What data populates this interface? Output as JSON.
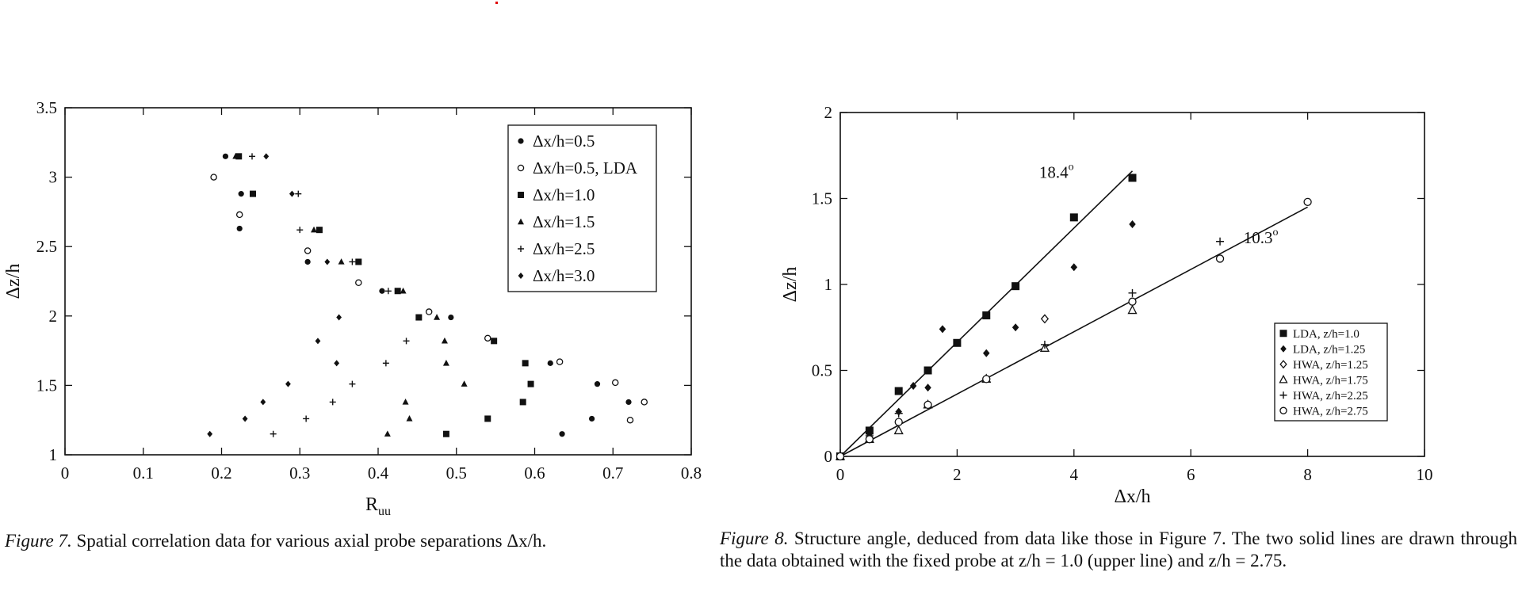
{
  "colors": {
    "ink": "#111111",
    "background": "#ffffff",
    "stray_mark": "#e00000"
  },
  "chart_data": [
    {
      "id": "fig7",
      "type": "scatter",
      "title": "",
      "xlabel": "R",
      "xlabel_sub": "uu",
      "ylabel": "Δz/h",
      "xlim": [
        0,
        0.8
      ],
      "ylim": [
        1,
        3.5
      ],
      "xticks": [
        0,
        0.1,
        0.2,
        0.3,
        0.4,
        0.5,
        0.6,
        0.7,
        0.8
      ],
      "yticks": [
        1,
        1.5,
        2,
        2.5,
        3,
        3.5
      ],
      "xtick_labels": [
        "0",
        "0.1",
        "0.2",
        "0.3",
        "0.4",
        "0.5",
        "0.6",
        "0.7",
        "0.8"
      ],
      "ytick_labels": [
        "1",
        "1.5",
        "2",
        "2.5",
        "3",
        "3.5"
      ],
      "grid": false,
      "legend_position": "top-right",
      "series": [
        {
          "name": "Δx/h=0.5",
          "marker": "filled-circle",
          "x": [
            0.205,
            0.225,
            0.223,
            0.31,
            0.405,
            0.493,
            0.62,
            0.635,
            0.68,
            0.673,
            0.72
          ],
          "y": [
            3.15,
            2.88,
            2.63,
            2.39,
            2.18,
            1.99,
            1.66,
            1.15,
            1.51,
            1.26,
            1.38
          ]
        },
        {
          "name": "Δx/h=0.5, LDA",
          "marker": "open-circle",
          "x": [
            0.19,
            0.223,
            0.31,
            0.375,
            0.465,
            0.54,
            0.632,
            0.703,
            0.722,
            0.74
          ],
          "y": [
            3.0,
            2.73,
            2.47,
            2.24,
            2.03,
            1.84,
            1.67,
            1.52,
            1.25,
            1.38
          ]
        },
        {
          "name": "Δx/h=1.0",
          "marker": "filled-square",
          "x": [
            0.222,
            0.24,
            0.325,
            0.375,
            0.425,
            0.452,
            0.487,
            0.54,
            0.548,
            0.585,
            0.588,
            0.595
          ],
          "y": [
            3.15,
            2.88,
            2.62,
            2.39,
            2.18,
            1.99,
            1.15,
            1.26,
            1.82,
            1.38,
            1.66,
            1.51
          ]
        },
        {
          "name": "Δx/h=1.5",
          "marker": "filled-triangle",
          "x": [
            0.218,
            0.318,
            0.353,
            0.432,
            0.435,
            0.44,
            0.475,
            0.485,
            0.487,
            0.51,
            0.412
          ],
          "y": [
            3.15,
            2.62,
            2.39,
            2.18,
            1.38,
            1.26,
            1.99,
            1.82,
            1.66,
            1.51,
            1.15
          ]
        },
        {
          "name": "Δx/h=2.5",
          "marker": "plus",
          "x": [
            0.239,
            0.298,
            0.3,
            0.367,
            0.413,
            0.436,
            0.41,
            0.367,
            0.342,
            0.308,
            0.266
          ],
          "y": [
            3.15,
            2.88,
            2.62,
            2.39,
            2.18,
            1.82,
            1.66,
            1.51,
            1.38,
            1.26,
            1.15
          ]
        },
        {
          "name": "Δx/h=3.0",
          "marker": "filled-diamond",
          "x": [
            0.257,
            0.29,
            0.335,
            0.35,
            0.323,
            0.347,
            0.285,
            0.253,
            0.23,
            0.185
          ],
          "y": [
            3.15,
            2.88,
            2.39,
            1.99,
            1.82,
            1.66,
            1.51,
            1.38,
            1.26,
            1.15
          ]
        }
      ]
    },
    {
      "id": "fig8",
      "type": "scatter",
      "title": "",
      "xlabel": "Δx/h",
      "ylabel": "Δz/h",
      "xlim": [
        0,
        10
      ],
      "ylim": [
        0,
        2
      ],
      "xticks": [
        0,
        2,
        4,
        6,
        8,
        10
      ],
      "yticks": [
        0,
        0.5,
        1,
        1.5,
        2
      ],
      "xtick_labels": [
        "0",
        "2",
        "4",
        "6",
        "8",
        "10"
      ],
      "ytick_labels": [
        "0",
        "0.5",
        "1",
        "1.5",
        "2"
      ],
      "grid": false,
      "legend_position": "center-right",
      "series": [
        {
          "name": "LDA,  z/h=1.0",
          "marker": "filled-square",
          "x": [
            0,
            0.5,
            1,
            1.5,
            2,
            2.5,
            3,
            4,
            5
          ],
          "y": [
            0,
            0.15,
            0.38,
            0.5,
            0.66,
            0.82,
            0.99,
            1.39,
            1.62
          ]
        },
        {
          "name": "LDA,  z/h=1.25",
          "marker": "filled-diamond",
          "x": [
            0.5,
            1,
            1.25,
            1.5,
            1.75,
            2.5,
            3,
            4,
            5
          ],
          "y": [
            0.13,
            0.26,
            0.41,
            0.4,
            0.74,
            0.6,
            0.75,
            1.1,
            1.35
          ]
        },
        {
          "name": "HWA,  z/h=1.25",
          "marker": "open-diamond",
          "x": [
            3.5
          ],
          "y": [
            0.8
          ]
        },
        {
          "name": "HWA,  z/h=1.75",
          "marker": "open-triangle",
          "x": [
            0,
            0.5,
            1,
            1.5,
            2.5,
            3.5,
            5
          ],
          "y": [
            0,
            0.1,
            0.15,
            0.3,
            0.45,
            0.63,
            0.85
          ]
        },
        {
          "name": "HWA,  z/h=2.25",
          "marker": "plus",
          "x": [
            0,
            0.5,
            1,
            1.5,
            2.5,
            3.5,
            5,
            6.5
          ],
          "y": [
            0,
            0.12,
            0.25,
            0.3,
            0.45,
            0.65,
            0.95,
            1.25
          ]
        },
        {
          "name": "HWA,  z/h=2.75",
          "marker": "open-circle",
          "x": [
            0,
            0.5,
            1,
            1.5,
            2.5,
            5,
            6.5,
            8
          ],
          "y": [
            0,
            0.1,
            0.2,
            0.3,
            0.45,
            0.9,
            1.15,
            1.48
          ]
        }
      ],
      "lines": [
        {
          "x": [
            0,
            5
          ],
          "y": [
            0,
            1.66
          ],
          "label": "18.4",
          "label_sup": "o",
          "label_at": [
            3.7,
            1.62
          ]
        },
        {
          "x": [
            0,
            8
          ],
          "y": [
            0,
            1.45
          ],
          "label": "10.3",
          "label_sup": "o",
          "label_at": [
            7.2,
            1.24
          ]
        }
      ]
    }
  ],
  "captions": {
    "fig7_lead": "Figure 7.",
    "fig7_text": "Spatial correlation data for various axial probe separations Δx/h.",
    "fig8_lead": "Figure 8.",
    "fig8_text": "Structure angle, deduced from data like those in Figure 7. The two solid lines are drawn through the data obtained with the fixed probe at z/h = 1.0 (upper line) and z/h = 2.75."
  }
}
